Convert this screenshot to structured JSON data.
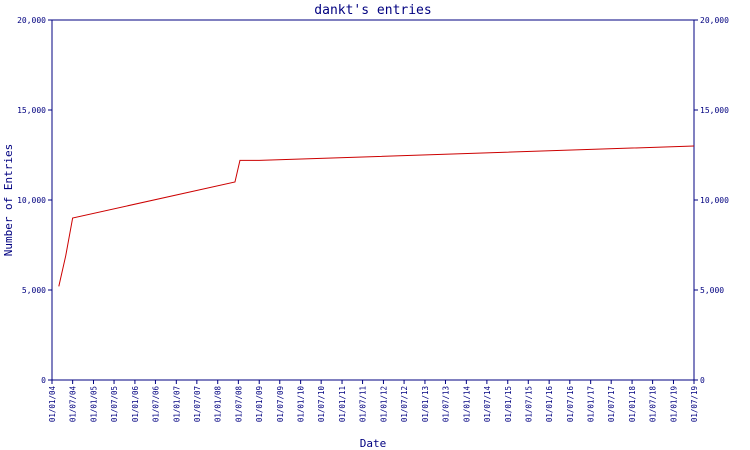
{
  "chart_data": {
    "type": "line",
    "title": "dankt's entries",
    "xlabel": "Date",
    "ylabel": "Number of Entries",
    "ylim": [
      0,
      20000
    ],
    "y_ticks": [
      0,
      5000,
      10000,
      15000,
      20000
    ],
    "y_tick_labels": [
      "0",
      "5,000",
      "10,000",
      "15,000",
      "20,000"
    ],
    "x_tick_labels": [
      "01/01/04",
      "01/07/04",
      "01/01/05",
      "01/07/05",
      "01/01/06",
      "01/07/06",
      "01/01/07",
      "01/07/07",
      "01/01/08",
      "01/07/08",
      "01/01/09",
      "01/07/09",
      "01/01/10",
      "01/07/10",
      "01/01/11",
      "01/07/11",
      "01/01/12",
      "01/07/12",
      "01/01/13",
      "01/07/13",
      "01/01/14",
      "01/07/14",
      "01/01/15",
      "01/07/15",
      "01/01/16",
      "01/07/16",
      "01/01/17",
      "01/07/17",
      "01/01/18",
      "01/07/18",
      "01/01/19",
      "01/07/19"
    ],
    "grid": false,
    "colors": {
      "axis": "#000080",
      "text": "#000080",
      "line": "#cc0000"
    },
    "series": [
      {
        "x": [
          "2004-03-01",
          "2004-05-01",
          "2004-07-01",
          "2008-06-01",
          "2008-07-15",
          "2008-08-15",
          "2009-01-01",
          "2019-07-01"
        ],
        "values": [
          5200,
          6900,
          9000,
          11000,
          12200,
          12200,
          12200,
          13000
        ]
      }
    ]
  }
}
